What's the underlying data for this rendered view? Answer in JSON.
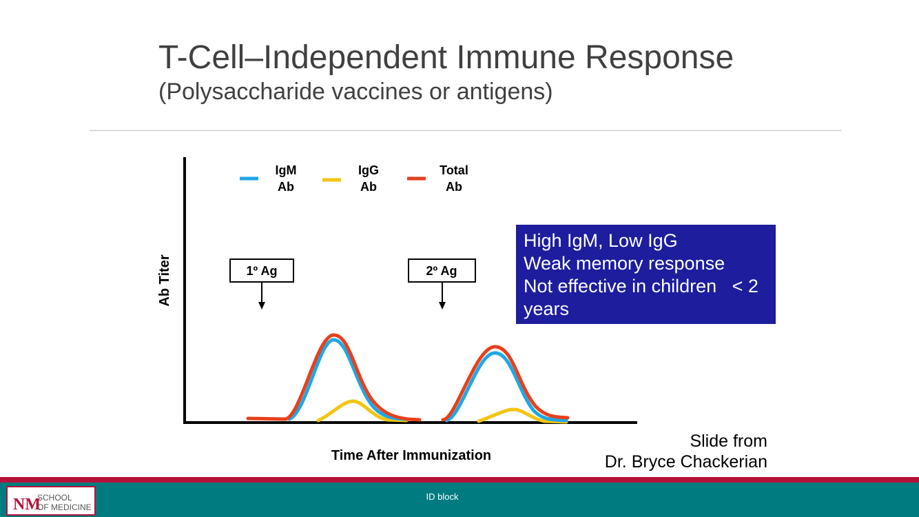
{
  "slide": {
    "title": "T-Cell–Independent Immune Response",
    "subtitle": "(Polysaccharide vaccines or antigens)",
    "diagram": {
      "legend": [
        {
          "lines": [
            "IgM",
            "Ab"
          ]
        },
        {
          "lines": [
            "IgG",
            "Ab"
          ]
        },
        {
          "lines": [
            "Total",
            "Ab"
          ]
        }
      ],
      "y_label": "Ab Titer",
      "x_label": "Time After Immunization",
      "markers": [
        "1º Ag",
        "2º Ag"
      ]
    },
    "callout": [
      "High IgM, Low IgG",
      "Weak memory response",
      "Not effective in children   < 2",
      "years"
    ],
    "credit": [
      "Slide from",
      "Dr. Bryce Chackerian"
    ]
  },
  "footer": {
    "center": "ID block",
    "logo": [
      "SCHOOL",
      "OF MEDICINE"
    ]
  }
}
